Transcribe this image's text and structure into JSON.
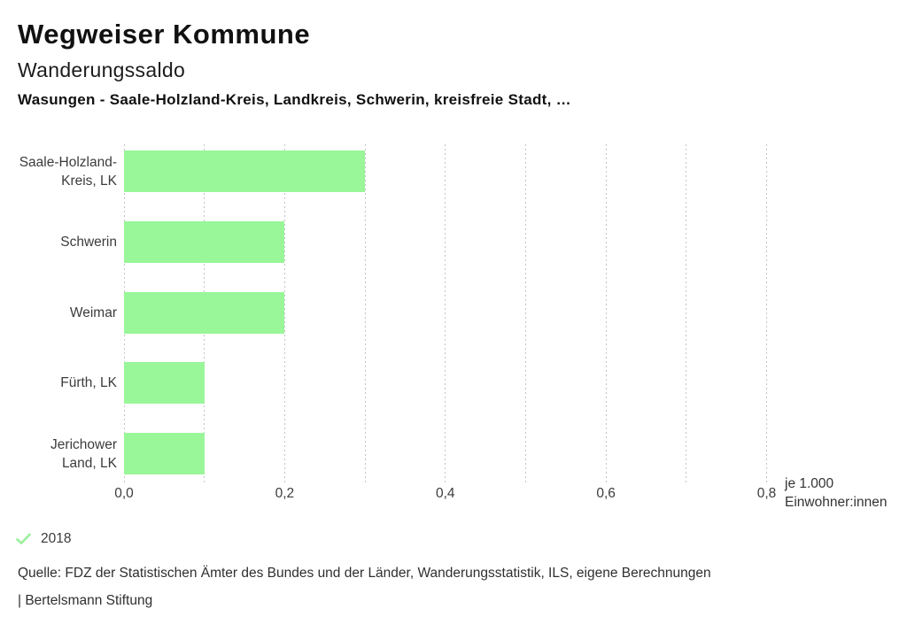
{
  "header": {
    "app_title": "Wegweiser Kommune",
    "chart_title": "Wanderungssaldo",
    "chart_subtitle": "Wasungen - Saale-Holzland-Kreis, Landkreis, Schwerin, kreisfreie Stadt, …"
  },
  "chart_data": {
    "type": "bar",
    "orientation": "horizontal",
    "title": "Wanderungssaldo",
    "subtitle": "Wasungen - Saale-Holzland-Kreis, Landkreis, Schwerin, kreisfreie Stadt, …",
    "categories": [
      "Saale-Holzland-Kreis, LK",
      "Schwerin",
      "Weimar",
      "Fürth, LK",
      "Jerichower Land, LK"
    ],
    "category_display": [
      "Saale-Holzland-\nKreis, LK",
      "Schwerin",
      "Weimar",
      "Fürth, LK",
      "Jerichower\nLand, LK"
    ],
    "series": [
      {
        "name": "2018",
        "values": [
          0.3,
          0.2,
          0.2,
          0.1,
          0.1
        ]
      }
    ],
    "xlim": [
      0,
      0.8
    ],
    "grid_step": 0.1,
    "grid": true,
    "xticks": [
      {
        "value": 0.0,
        "label": "0,0"
      },
      {
        "value": 0.2,
        "label": "0,2"
      },
      {
        "value": 0.4,
        "label": "0,4"
      },
      {
        "value": 0.6,
        "label": "0,6"
      },
      {
        "value": 0.8,
        "label": "0,8"
      }
    ],
    "unit_label_lines": [
      "je 1.000",
      "Einwohner:innen"
    ],
    "bar_color": "#99f699",
    "gridline_color": "#c4c4c4",
    "legend_position": "bottom"
  },
  "legend": {
    "year": "2018",
    "checked": true,
    "check_color": "#9bef9e"
  },
  "footer": {
    "source": "Quelle: FDZ der Statistischen Ämter des Bundes und der Länder, Wanderungsstatistik, ILS, eigene Berechnungen",
    "branding": "| Bertelsmann Stiftung"
  }
}
